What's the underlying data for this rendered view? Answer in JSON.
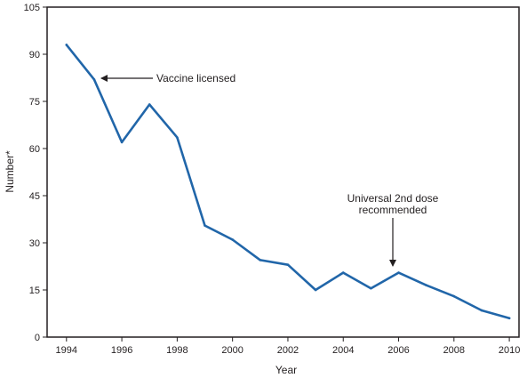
{
  "colors": {
    "series": "#2166a9",
    "frame": "#231f20"
  },
  "chart_data": {
    "type": "line",
    "title": "",
    "xlabel": "Year",
    "ylabel": "Number*",
    "xlim": [
      1993.3,
      2010.35
    ],
    "ylim": [
      0,
      105
    ],
    "x_ticks": [
      1994,
      1996,
      1998,
      2000,
      2002,
      2004,
      2006,
      2008,
      2010
    ],
    "y_ticks": [
      0,
      15,
      30,
      45,
      60,
      75,
      90,
      105
    ],
    "grid": false,
    "series": [
      {
        "x": [
          1994,
          1995,
          1996,
          1997,
          1998,
          1999,
          2000,
          2001,
          2002,
          2003,
          2004,
          2005,
          2006,
          2007,
          2008,
          2009,
          2010
        ],
        "values": [
          93,
          82,
          62,
          74,
          63.5,
          35.5,
          31,
          24.5,
          23,
          15,
          20.5,
          15.5,
          20.5,
          16.5,
          13,
          8.5,
          6
        ]
      }
    ],
    "annotations": [
      {
        "lines": [
          "Vaccine licensed"
        ],
        "x": 1995,
        "y": 82
      },
      {
        "lines": [
          "Universal 2nd dose",
          "recommended"
        ],
        "x": 2006,
        "y": 20.5
      }
    ]
  }
}
